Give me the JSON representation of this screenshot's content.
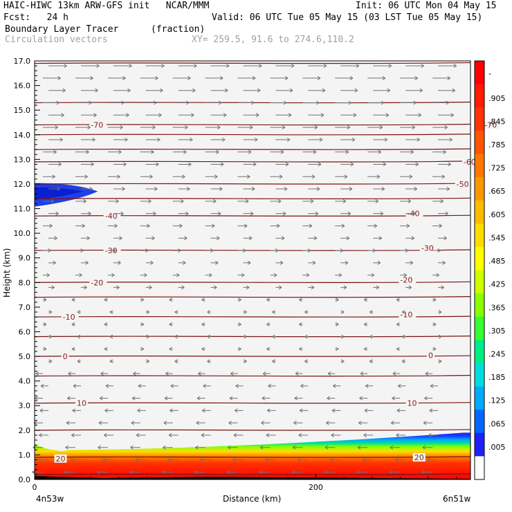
{
  "header": {
    "model": "HAIC-HIWC 13km ARW-GFS init   NCAR/MMM",
    "init": "Init: 06 UTC Mon 04 May 15",
    "fcst": "Fcst:   24 h",
    "valid": "Valid: 06 UTC Tue 05 May 15 (03 LST Tue 05 May 15)",
    "field": "Boundary Layer Tracer",
    "field_units": "(fraction)",
    "overlay": "Circulation vectors",
    "xy": "XY= 259.5, 91.6 to 274.6,110.2"
  },
  "chart_data": {
    "type": "heatmap",
    "ylabel": "Height (km)",
    "xlabel": "Distance (km)",
    "ylim": [
      0,
      17
    ],
    "yticks": [
      "0.0",
      "1.0",
      "2.0",
      "3.0",
      "4.0",
      "5.0",
      "6.0",
      "7.0",
      "8.0",
      "9.0",
      "10.0",
      "11.0",
      "12.0",
      "13.0",
      "14.0",
      "15.0",
      "16.0",
      "17.0"
    ],
    "xlim": [
      0,
      310
    ],
    "xticks": [
      {
        "x": 0,
        "label": "0"
      },
      {
        "x": 200,
        "label": "200"
      }
    ],
    "x_end_labels": {
      "left": "4n53w",
      "right": "6n51w"
    },
    "colorbar_labels": [
      "-",
      ".905",
      ".845",
      ".785",
      ".725",
      ".665",
      ".605",
      ".545",
      ".485",
      ".425",
      ".365",
      ".305",
      ".245",
      ".185",
      ".125",
      ".065",
      ".005"
    ],
    "colorbar_colors": [
      "#ff0000",
      "#ff1a00",
      "#ff3300",
      "#ff5500",
      "#ff7700",
      "#ff9900",
      "#ffbb00",
      "#ffdd00",
      "#ffff00",
      "#ccff00",
      "#88ff00",
      "#33ff33",
      "#00ee88",
      "#00dddd",
      "#00aaff",
      "#0066ff",
      "#2020ff",
      "#ffffff"
    ],
    "temperature_contours": [
      {
        "label": "20",
        "y": 0.9,
        "label_pos": [
          [
            15,
            0.85
          ],
          [
            270,
            0.9
          ]
        ]
      },
      {
        "label": "10",
        "y": 3.1,
        "label_pos": [
          [
            30,
            3.1
          ],
          [
            265,
            3.1
          ]
        ]
      },
      {
        "label": "0",
        "y": 5.0,
        "label_pos": [
          [
            20,
            5.0
          ],
          [
            280,
            5.05
          ]
        ]
      },
      {
        "label": "-10",
        "y": 6.6,
        "label_pos": [
          [
            20,
            6.6
          ],
          [
            260,
            6.7
          ]
        ]
      },
      {
        "label": "-20",
        "y": 8.0,
        "label_pos": [
          [
            40,
            8.0
          ],
          [
            260,
            8.1
          ]
        ]
      },
      {
        "label": "-30",
        "y": 9.3,
        "label_pos": [
          [
            50,
            9.3
          ],
          [
            275,
            9.4
          ]
        ]
      },
      {
        "label": "-40",
        "y": 10.7,
        "label_pos": [
          [
            50,
            10.7
          ],
          [
            265,
            10.8
          ]
        ]
      },
      {
        "label": "-50",
        "y": 12.0,
        "label_pos": [
          [
            300,
            12.0
          ]
        ]
      },
      {
        "label": "-60",
        "y": 12.9,
        "label_pos": [
          [
            305,
            12.9
          ]
        ]
      },
      {
        "label": "-70",
        "y": 14.4,
        "label_pos": [
          [
            40,
            14.4
          ],
          [
            320,
            14.4
          ]
        ]
      }
    ],
    "extra_contour_heights": [
      0.2,
      2.0,
      4.2,
      5.8,
      7.4,
      11.4,
      13.4,
      14.0,
      15.3,
      16.9
    ],
    "tracer_layer": {
      "top_km_left": 1.4,
      "top_km_right": 1.9,
      "blob_center_km": 11.7,
      "blob_extent_x": 45
    }
  }
}
